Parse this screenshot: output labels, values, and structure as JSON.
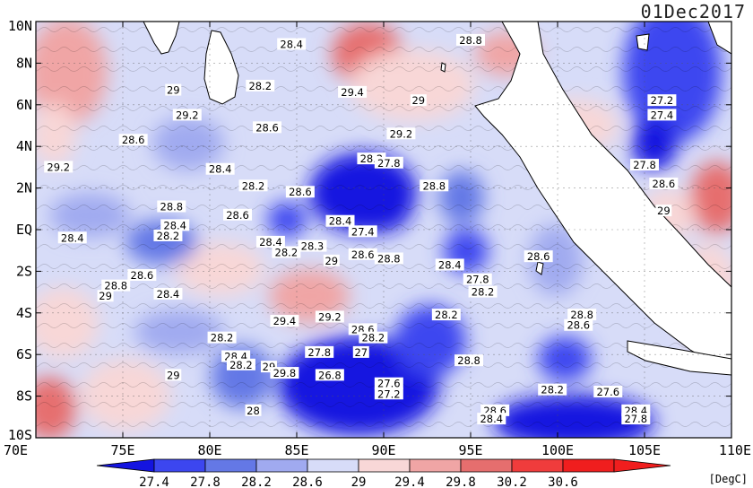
{
  "title": {
    "date": "01Dec2017"
  },
  "axes": {
    "x_ticks": [
      "70E",
      "75E",
      "80E",
      "85E",
      "90E",
      "95E",
      "100E",
      "105E",
      "110E"
    ],
    "y_ticks": [
      "10N",
      "8N",
      "6N",
      "4N",
      "2N",
      "EQ",
      "2S",
      "4S",
      "6S",
      "8S",
      "10S"
    ],
    "lon_range": [
      70,
      110
    ],
    "lat_range": [
      -10,
      10
    ]
  },
  "colorbar": {
    "unit": "[DegC]",
    "labels": [
      "27.4",
      "27.8",
      "28.2",
      "28.6",
      "29",
      "29.4",
      "29.8",
      "30.2",
      "30.6"
    ],
    "colors": [
      "#1414e0",
      "#3c46f0",
      "#6478e6",
      "#a0aaf0",
      "#d7dcf8",
      "#f8d7d7",
      "#f0a5a5",
      "#e66e6e",
      "#f03c3c",
      "#f01e1e"
    ]
  },
  "contour_labels": [
    {
      "text": "28.4",
      "lon": 84.7,
      "lat": 8.9
    },
    {
      "text": "28.8",
      "lon": 95.0,
      "lat": 9.1
    },
    {
      "text": "28.2",
      "lon": 82.9,
      "lat": 6.9
    },
    {
      "text": "29.4",
      "lon": 88.2,
      "lat": 6.6
    },
    {
      "text": "29",
      "lon": 92.0,
      "lat": 6.2
    },
    {
      "text": "29",
      "lon": 77.9,
      "lat": 6.7
    },
    {
      "text": "29.2",
      "lon": 78.7,
      "lat": 5.5
    },
    {
      "text": "27.2",
      "lon": 106.0,
      "lat": 6.2
    },
    {
      "text": "27.4",
      "lon": 106.0,
      "lat": 5.5
    },
    {
      "text": "28.6",
      "lon": 83.3,
      "lat": 4.9
    },
    {
      "text": "29.2",
      "lon": 91.0,
      "lat": 4.6
    },
    {
      "text": "28.6",
      "lon": 75.6,
      "lat": 4.3
    },
    {
      "text": "28.4",
      "lon": 80.6,
      "lat": 2.9
    },
    {
      "text": "29.2",
      "lon": 71.3,
      "lat": 3.0
    },
    {
      "text": "28.2",
      "lon": 89.3,
      "lat": 3.4
    },
    {
      "text": "27.8",
      "lon": 90.3,
      "lat": 3.2
    },
    {
      "text": "27.8",
      "lon": 105.0,
      "lat": 3.1
    },
    {
      "text": "28.2",
      "lon": 82.5,
      "lat": 2.1
    },
    {
      "text": "28.6",
      "lon": 106.1,
      "lat": 2.2
    },
    {
      "text": "28.6",
      "lon": 85.2,
      "lat": 1.8
    },
    {
      "text": "28.8",
      "lon": 92.9,
      "lat": 2.1
    },
    {
      "text": "28.8",
      "lon": 77.8,
      "lat": 1.1
    },
    {
      "text": "28.6",
      "lon": 81.6,
      "lat": 0.7
    },
    {
      "text": "28.4",
      "lon": 87.5,
      "lat": 0.4
    },
    {
      "text": "29",
      "lon": 106.1,
      "lat": 0.9
    },
    {
      "text": "28.4",
      "lon": 78.0,
      "lat": 0.2
    },
    {
      "text": "27.4",
      "lon": 88.8,
      "lat": -0.1
    },
    {
      "text": "28.4",
      "lon": 72.1,
      "lat": -0.4
    },
    {
      "text": "28.2",
      "lon": 77.6,
      "lat": -0.3
    },
    {
      "text": "28.4",
      "lon": 83.5,
      "lat": -0.6
    },
    {
      "text": "28.2",
      "lon": 84.4,
      "lat": -1.1
    },
    {
      "text": "28.3",
      "lon": 85.9,
      "lat": -0.8
    },
    {
      "text": "28.6",
      "lon": 88.8,
      "lat": -1.2
    },
    {
      "text": "28.8",
      "lon": 90.3,
      "lat": -1.4
    },
    {
      "text": "29",
      "lon": 87.0,
      "lat": -1.5
    },
    {
      "text": "28.6",
      "lon": 98.9,
      "lat": -1.3
    },
    {
      "text": "28.4",
      "lon": 93.8,
      "lat": -1.7
    },
    {
      "text": "28.6",
      "lon": 76.1,
      "lat": -2.2
    },
    {
      "text": "28.8",
      "lon": 74.6,
      "lat": -2.7
    },
    {
      "text": "29",
      "lon": 74.0,
      "lat": -3.2
    },
    {
      "text": "28.4",
      "lon": 77.6,
      "lat": -3.1
    },
    {
      "text": "27.8",
      "lon": 95.4,
      "lat": -2.4
    },
    {
      "text": "28.2",
      "lon": 95.7,
      "lat": -3.0
    },
    {
      "text": "29.4",
      "lon": 84.3,
      "lat": -4.4
    },
    {
      "text": "29.2",
      "lon": 86.9,
      "lat": -4.2
    },
    {
      "text": "28.2",
      "lon": 93.6,
      "lat": -4.1
    },
    {
      "text": "28.8",
      "lon": 101.4,
      "lat": -4.1
    },
    {
      "text": "28.6",
      "lon": 101.2,
      "lat": -4.6
    },
    {
      "text": "28.2",
      "lon": 80.7,
      "lat": -5.2
    },
    {
      "text": "28.6",
      "lon": 88.8,
      "lat": -4.8
    },
    {
      "text": "28.2",
      "lon": 89.4,
      "lat": -5.2
    },
    {
      "text": "28.4",
      "lon": 81.5,
      "lat": -6.1
    },
    {
      "text": "28.2",
      "lon": 81.8,
      "lat": -6.5
    },
    {
      "text": "29",
      "lon": 83.4,
      "lat": -6.6
    },
    {
      "text": "29.8",
      "lon": 84.3,
      "lat": -6.9
    },
    {
      "text": "27.8",
      "lon": 86.3,
      "lat": -5.9
    },
    {
      "text": "27",
      "lon": 88.7,
      "lat": -5.9
    },
    {
      "text": "28.8",
      "lon": 94.9,
      "lat": -6.3
    },
    {
      "text": "26.8",
      "lon": 86.9,
      "lat": -7.0
    },
    {
      "text": "27.6",
      "lon": 90.3,
      "lat": -7.4
    },
    {
      "text": "27.2",
      "lon": 90.3,
      "lat": -7.9
    },
    {
      "text": "29",
      "lon": 77.9,
      "lat": -7.0
    },
    {
      "text": "28.2",
      "lon": 99.7,
      "lat": -7.7
    },
    {
      "text": "27.6",
      "lon": 102.9,
      "lat": -7.8
    },
    {
      "text": "28.6",
      "lon": 96.4,
      "lat": -8.7
    },
    {
      "text": "28.4",
      "lon": 96.2,
      "lat": -9.1
    },
    {
      "text": "28",
      "lon": 82.5,
      "lat": -8.7
    },
    {
      "text": "28.4",
      "lon": 104.5,
      "lat": -8.7
    },
    {
      "text": "27.8",
      "lon": 104.5,
      "lat": -9.1
    }
  ]
}
